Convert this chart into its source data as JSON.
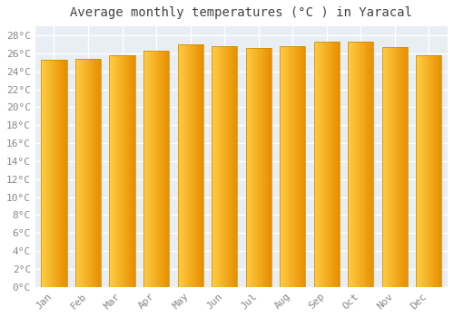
{
  "title": "Average monthly temperatures (°C ) in Yaracal",
  "months": [
    "Jan",
    "Feb",
    "Mar",
    "Apr",
    "May",
    "Jun",
    "Jul",
    "Aug",
    "Sep",
    "Oct",
    "Nov",
    "Dec"
  ],
  "values": [
    25.3,
    25.4,
    25.8,
    26.3,
    27.0,
    26.8,
    26.6,
    26.8,
    27.3,
    27.3,
    26.7,
    25.8
  ],
  "bar_color_left": "#FFCC44",
  "bar_color_right": "#E89000",
  "bar_color_edge": "#CC8800",
  "background_color": "#FFFFFF",
  "plot_bg_color": "#E8EEF4",
  "grid_color": "#FFFFFF",
  "ytick_labels": [
    "0°C",
    "2°C",
    "4°C",
    "6°C",
    "8°C",
    "10°C",
    "12°C",
    "14°C",
    "16°C",
    "18°C",
    "20°C",
    "22°C",
    "24°C",
    "26°C",
    "28°C"
  ],
  "ytick_values": [
    0,
    2,
    4,
    6,
    8,
    10,
    12,
    14,
    16,
    18,
    20,
    22,
    24,
    26,
    28
  ],
  "ylim": [
    0,
    29
  ],
  "title_fontsize": 10,
  "tick_fontsize": 8,
  "tick_font_color": "#888888"
}
